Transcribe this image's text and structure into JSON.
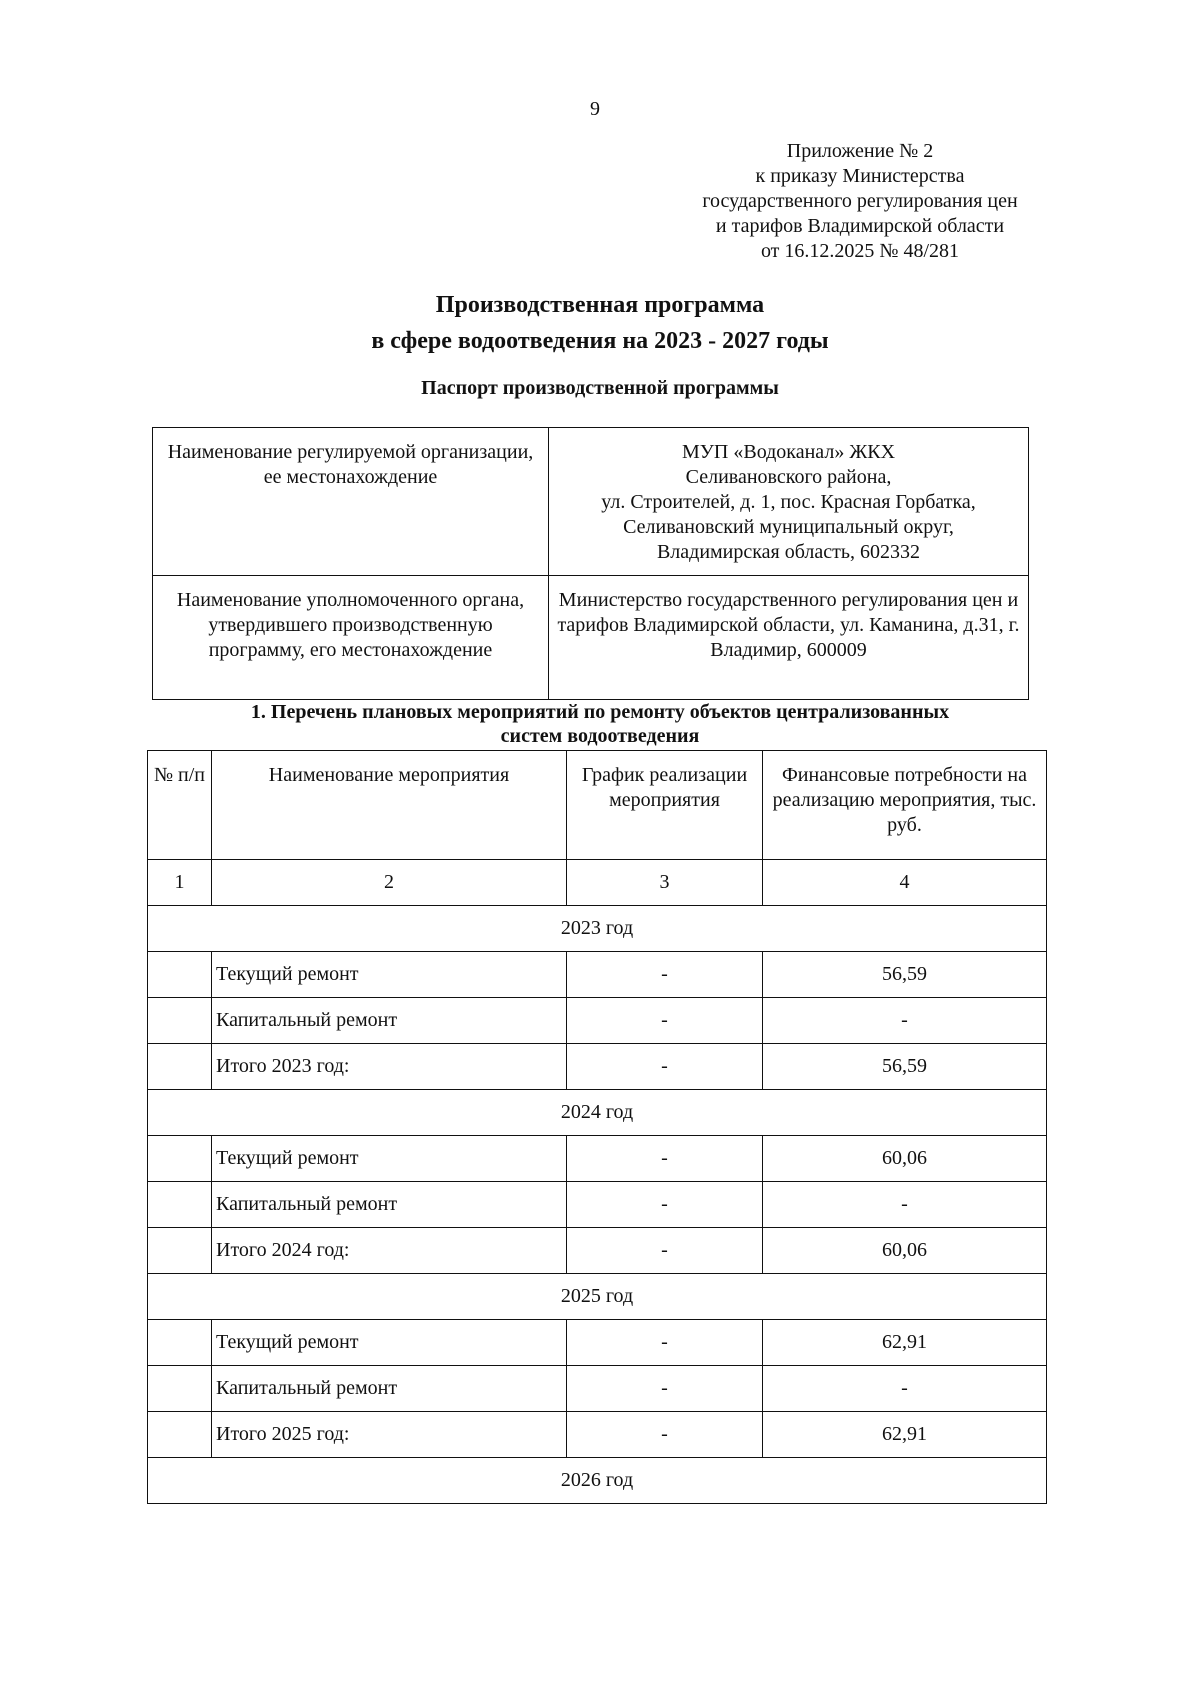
{
  "page_number": "9",
  "appendix": [
    "Приложение № 2",
    "к приказу Министерства",
    "государственного регулирования цен",
    "и тарифов Владимирской области",
    "от 16.12.2025 № 48/281"
  ],
  "title": [
    "Производственная программа",
    "в сфере водоотведения на 2023 - 2027 годы"
  ],
  "passport_title": "Паспорт производственной программы",
  "passport": [
    {
      "label": "Наименование регулируемой организации, ее местонахождение",
      "value": [
        "МУП «Водоканал» ЖКХ",
        "Селивановского района,",
        "ул. Строителей, д. 1, пос. Красная Горбатка,",
        "Селивановский муниципальный округ,",
        "Владимирская область, 602332"
      ]
    },
    {
      "label": "Наименование уполномоченного органа, утвердившего производственную программу, его местонахождение",
      "value": [
        "Министерство государственного регулирования цен и тарифов Владимирской области, ул. Каманина, д.31, г. Владимир, 600009"
      ]
    }
  ],
  "section1_title": "1. Перечень плановых мероприятий по ремонту объектов централизованных систем водоотведения",
  "table": {
    "headers": [
      "№ п/п",
      "Наименование мероприятия",
      "График реализации мероприятия",
      "Финансовые потребности на реализацию мероприятия, тыс. руб."
    ],
    "col_numbers": [
      "1",
      "2",
      "3",
      "4"
    ],
    "groups": [
      {
        "year": "2023 год",
        "rows": [
          [
            "",
            "Текущий ремонт",
            "-",
            "56,59"
          ],
          [
            "",
            "Капитальный ремонт",
            "-",
            "-"
          ],
          [
            "",
            "Итого 2023 год:",
            "-",
            "56,59"
          ]
        ]
      },
      {
        "year": "2024 год",
        "rows": [
          [
            "",
            "Текущий ремонт",
            "-",
            "60,06"
          ],
          [
            "",
            "Капитальный ремонт",
            "-",
            "-"
          ],
          [
            "",
            "Итого 2024 год:",
            "-",
            "60,06"
          ]
        ]
      },
      {
        "year": "2025 год",
        "rows": [
          [
            "",
            "Текущий ремонт",
            "-",
            "62,91"
          ],
          [
            "",
            "Капитальный ремонт",
            "-",
            "-"
          ],
          [
            "",
            "Итого 2025 год:",
            "-",
            "62,91"
          ]
        ]
      },
      {
        "year": "2026 год",
        "rows": []
      }
    ]
  }
}
